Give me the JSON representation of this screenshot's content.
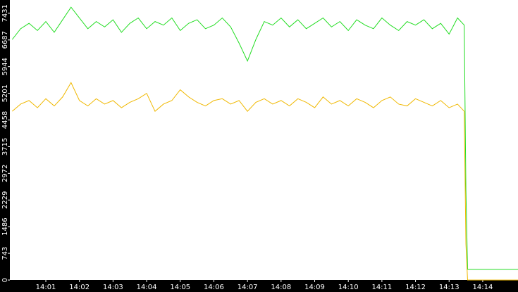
{
  "chart_data": {
    "type": "line",
    "x": [
      840.0,
      840.25,
      840.5,
      840.75,
      841.0,
      841.25,
      841.5,
      841.75,
      842.0,
      842.25,
      842.5,
      842.75,
      843.0,
      843.25,
      843.5,
      843.75,
      844.0,
      844.25,
      844.5,
      844.75,
      845.0,
      845.25,
      845.5,
      845.75,
      846.0,
      846.25,
      846.5,
      846.75,
      847.0,
      847.25,
      847.5,
      847.75,
      848.0,
      848.25,
      848.5,
      848.75,
      849.0,
      849.25,
      849.5,
      849.75,
      850.0,
      850.25,
      850.5,
      850.75,
      851.0,
      851.25,
      851.5,
      851.75,
      852.0,
      852.25,
      852.5,
      852.75,
      853.0,
      853.25,
      853.45,
      853.5,
      853.55,
      855.05
    ],
    "series": [
      {
        "color": "#22dd22",
        "values": [
          6700,
          7000,
          7150,
          6950,
          7200,
          6900,
          7250,
          7600,
          7300,
          7000,
          7200,
          7050,
          7250,
          6900,
          7150,
          7300,
          7000,
          7200,
          7100,
          7300,
          6950,
          7150,
          7250,
          7000,
          7100,
          7300,
          7050,
          6600,
          6100,
          6700,
          7200,
          7100,
          7300,
          7050,
          7250,
          7000,
          7150,
          7300,
          7050,
          7200,
          6950,
          7250,
          7100,
          7000,
          7300,
          7100,
          6950,
          7200,
          7100,
          7250,
          7000,
          7150,
          6850,
          7300,
          7100,
          2500,
          300,
          300
        ]
      },
      {
        "color": "#f0b800",
        "values": [
          4700,
          4900,
          5000,
          4800,
          5050,
          4850,
          5100,
          5500,
          5000,
          4850,
          5050,
          4900,
          5000,
          4800,
          4950,
          5050,
          5200,
          4700,
          4900,
          5000,
          5300,
          5100,
          4950,
          4850,
          5000,
          5050,
          4900,
          5000,
          4700,
          4950,
          5050,
          4900,
          5000,
          4850,
          5050,
          4950,
          4800,
          5100,
          4900,
          5000,
          4850,
          5050,
          4950,
          4800,
          5000,
          5100,
          4900,
          4850,
          5050,
          4950,
          4850,
          5000,
          4800,
          4900,
          4700,
          1000,
          0,
          0
        ]
      }
    ],
    "xlim": [
      839.93,
      855.05
    ],
    "xticks": [
      {
        "value": 841,
        "label": "14:01"
      },
      {
        "value": 842,
        "label": "14:02"
      },
      {
        "value": 843,
        "label": "14:03"
      },
      {
        "value": 844,
        "label": "14:04"
      },
      {
        "value": 845,
        "label": "14:05"
      },
      {
        "value": 846,
        "label": "14:06"
      },
      {
        "value": 847,
        "label": "14:07"
      },
      {
        "value": 848,
        "label": "14:08"
      },
      {
        "value": 849,
        "label": "14:09"
      },
      {
        "value": 850,
        "label": "14:10"
      },
      {
        "value": 851,
        "label": "14:11"
      },
      {
        "value": 852,
        "label": "14:12"
      },
      {
        "value": 853,
        "label": "14:13"
      },
      {
        "value": 854,
        "label": "14:14"
      }
    ],
    "ylim": [
      0,
      7800
    ],
    "yticks": [
      0,
      743,
      1486,
      2229,
      2972,
      3715,
      4458,
      5201,
      5944,
      6687,
      7431
    ]
  }
}
